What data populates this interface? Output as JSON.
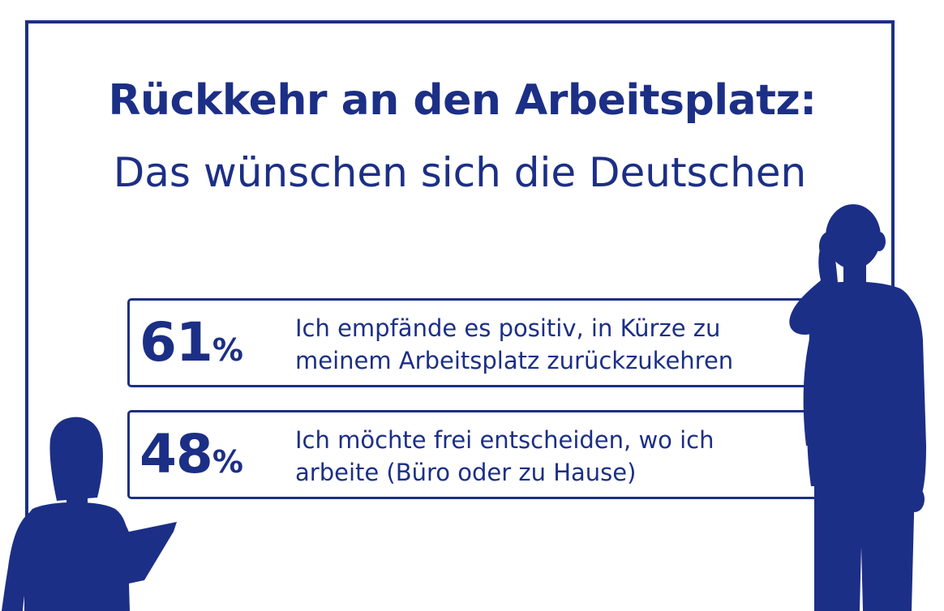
{
  "headline": {
    "title": "Rückkehr an den Arbeitsplatz:",
    "subtitle": "Das wünschen sich die Deutschen"
  },
  "stats": [
    {
      "value": "61",
      "unit": "%",
      "line1": "Ich empfände es positiv, in Kürze zu",
      "line2": "meinem Arbeitsplatz zurückzukehren"
    },
    {
      "value": "48",
      "unit": "%",
      "line1": "Ich möchte frei entscheiden, wo ich",
      "line2": "arbeite (Büro oder zu Hause)"
    }
  ],
  "colors": {
    "primary": "#1c2f86",
    "background": "#ffffff"
  },
  "illustrations": [
    "man-on-phone-silhouette",
    "woman-with-tablet-silhouette"
  ]
}
